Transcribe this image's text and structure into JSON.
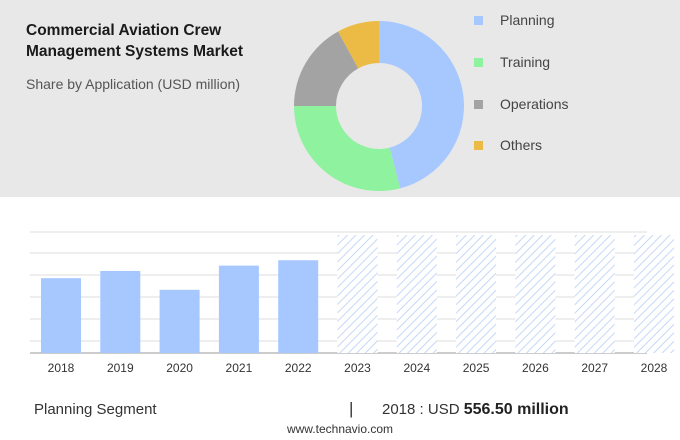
{
  "header": {
    "title_line1": "Commercial Aviation Crew",
    "title_line2": "Management Systems Market",
    "subtitle": "Share by Application (USD million)"
  },
  "donut": {
    "type": "pie",
    "style": "donut",
    "segments": [
      {
        "label": "Planning",
        "value": 46,
        "color": "#a6c8ff"
      },
      {
        "label": "Training",
        "value": 29,
        "color": "#8ff29f"
      },
      {
        "label": "Operations",
        "value": 17,
        "color": "#a3a3a3"
      },
      {
        "label": "Others",
        "value": 8,
        "color": "#ebbb45"
      }
    ]
  },
  "chart_data": {
    "type": "bar",
    "categories": [
      "2018",
      "2019",
      "2020",
      "2021",
      "2022",
      "2023",
      "2024",
      "2025",
      "2026",
      "2027",
      "2028"
    ],
    "values": [
      556.5,
      610,
      470,
      650,
      690,
      null,
      null,
      null,
      null,
      null,
      null
    ],
    "forecast_categories": [
      "2023",
      "2024",
      "2025",
      "2026",
      "2027",
      "2028"
    ],
    "ylim": [
      0,
      900
    ],
    "grid": true,
    "bar_color": "#a6c8ff",
    "forecast_hatch_color": "#c4d8f5"
  },
  "footer": {
    "segment_label": "Planning Segment",
    "separator": "|",
    "year_prefix": "2018 : USD",
    "amount": "556.50 million",
    "website": "www.technavio.com"
  }
}
